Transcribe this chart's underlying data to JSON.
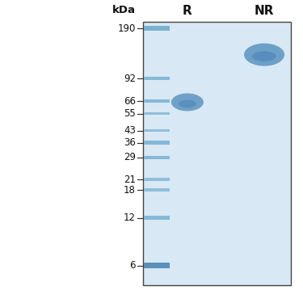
{
  "gel_bg_color": "#d8e8f4",
  "outer_bg": "#ffffff",
  "border_color": "#444444",
  "kda_label": "kDa",
  "lane_labels": [
    "R",
    "NR"
  ],
  "marker_bands": [
    190,
    92,
    66,
    55,
    43,
    36,
    29,
    21,
    18,
    12,
    6
  ],
  "ladder_colors": {
    "190": "#7ab0d0",
    "92": "#85b8d8",
    "66": "#85b8d8",
    "55": "#90bedd",
    "43": "#90bedd",
    "36": "#85b8d8",
    "29": "#85b8d8",
    "21": "#90bedd",
    "18": "#90bedd",
    "12": "#85b8d8",
    "6": "#5a90bb"
  },
  "ladder_heights": {
    "190": 6,
    "92": 4,
    "66": 4,
    "55": 3.5,
    "43": 3.5,
    "36": 5,
    "29": 4,
    "21": 4,
    "18": 4,
    "12": 5,
    "6": 7
  },
  "R_band_kda": 65,
  "R_band_color": "#5590be",
  "NR_band_kda": 130,
  "NR_band_color": "#5590be",
  "log_min": 4.5,
  "log_max": 210,
  "tick_fontsize": 8.5,
  "lane_label_fontsize": 11,
  "kda_fontsize": 9.5
}
